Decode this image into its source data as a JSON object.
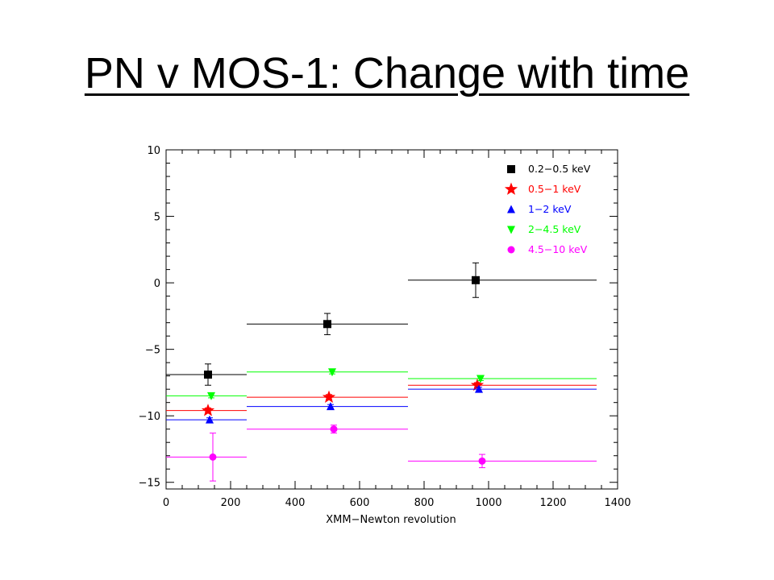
{
  "title": "PN v MOS-1: Change with time",
  "chart_data": {
    "type": "scatter",
    "xlabel": "XMM−Newton revolution",
    "ylabel": "",
    "xlim": [
      0,
      1400
    ],
    "ylim": [
      -15.5,
      10
    ],
    "x_ticks": [
      0,
      200,
      400,
      600,
      800,
      1000,
      1200,
      1400
    ],
    "y_ticks": [
      10,
      5,
      0,
      -5,
      -10,
      -15
    ],
    "y_tick_labels": [
      "10",
      "5",
      "0",
      "−5",
      "−10",
      "−15"
    ],
    "grid": false,
    "legend_position": "top-right",
    "series": [
      {
        "name": "0.2−0.5 keV",
        "color": "#000000",
        "marker": "square",
        "points": [
          {
            "x": 130,
            "y": -6.9,
            "xerr": [
              0,
              250
            ],
            "yerr": 0.8
          },
          {
            "x": 500,
            "y": -3.1,
            "xerr": [
              250,
              750
            ],
            "yerr": 0.8
          },
          {
            "x": 960,
            "y": 0.2,
            "xerr": [
              750,
              1335
            ],
            "yerr": 1.3
          }
        ]
      },
      {
        "name": "0.5−1 keV",
        "color": "#ff0000",
        "marker": "star",
        "points": [
          {
            "x": 130,
            "y": -9.6,
            "xerr": [
              0,
              250
            ],
            "yerr": 0.2
          },
          {
            "x": 505,
            "y": -8.6,
            "xerr": [
              250,
              750
            ],
            "yerr": 0.2
          },
          {
            "x": 965,
            "y": -7.7,
            "xerr": [
              750,
              1335
            ],
            "yerr": 0.2
          }
        ]
      },
      {
        "name": "1−2 keV",
        "color": "#0000ff",
        "marker": "triangle-up",
        "points": [
          {
            "x": 135,
            "y": -10.3,
            "xerr": [
              0,
              250
            ],
            "yerr": 0.15
          },
          {
            "x": 510,
            "y": -9.3,
            "xerr": [
              250,
              750
            ],
            "yerr": 0.15
          },
          {
            "x": 970,
            "y": -8.0,
            "xerr": [
              750,
              1335
            ],
            "yerr": 0.15
          }
        ]
      },
      {
        "name": "2−4.5 keV",
        "color": "#00ff00",
        "marker": "triangle-down",
        "points": [
          {
            "x": 140,
            "y": -8.5,
            "xerr": [
              0,
              250
            ],
            "yerr": 0.15
          },
          {
            "x": 515,
            "y": -6.7,
            "xerr": [
              250,
              750
            ],
            "yerr": 0.15
          },
          {
            "x": 975,
            "y": -7.2,
            "xerr": [
              750,
              1335
            ],
            "yerr": 0.15
          }
        ]
      },
      {
        "name": "4.5−10 keV",
        "color": "#ff00ff",
        "marker": "circle",
        "points": [
          {
            "x": 145,
            "y": -13.1,
            "xerr": [
              0,
              250
            ],
            "yerr": 1.8
          },
          {
            "x": 520,
            "y": -11.0,
            "xerr": [
              250,
              750
            ],
            "yerr": 0.3
          },
          {
            "x": 980,
            "y": -13.4,
            "xerr": [
              750,
              1335
            ],
            "yerr": 0.5
          }
        ]
      }
    ]
  }
}
